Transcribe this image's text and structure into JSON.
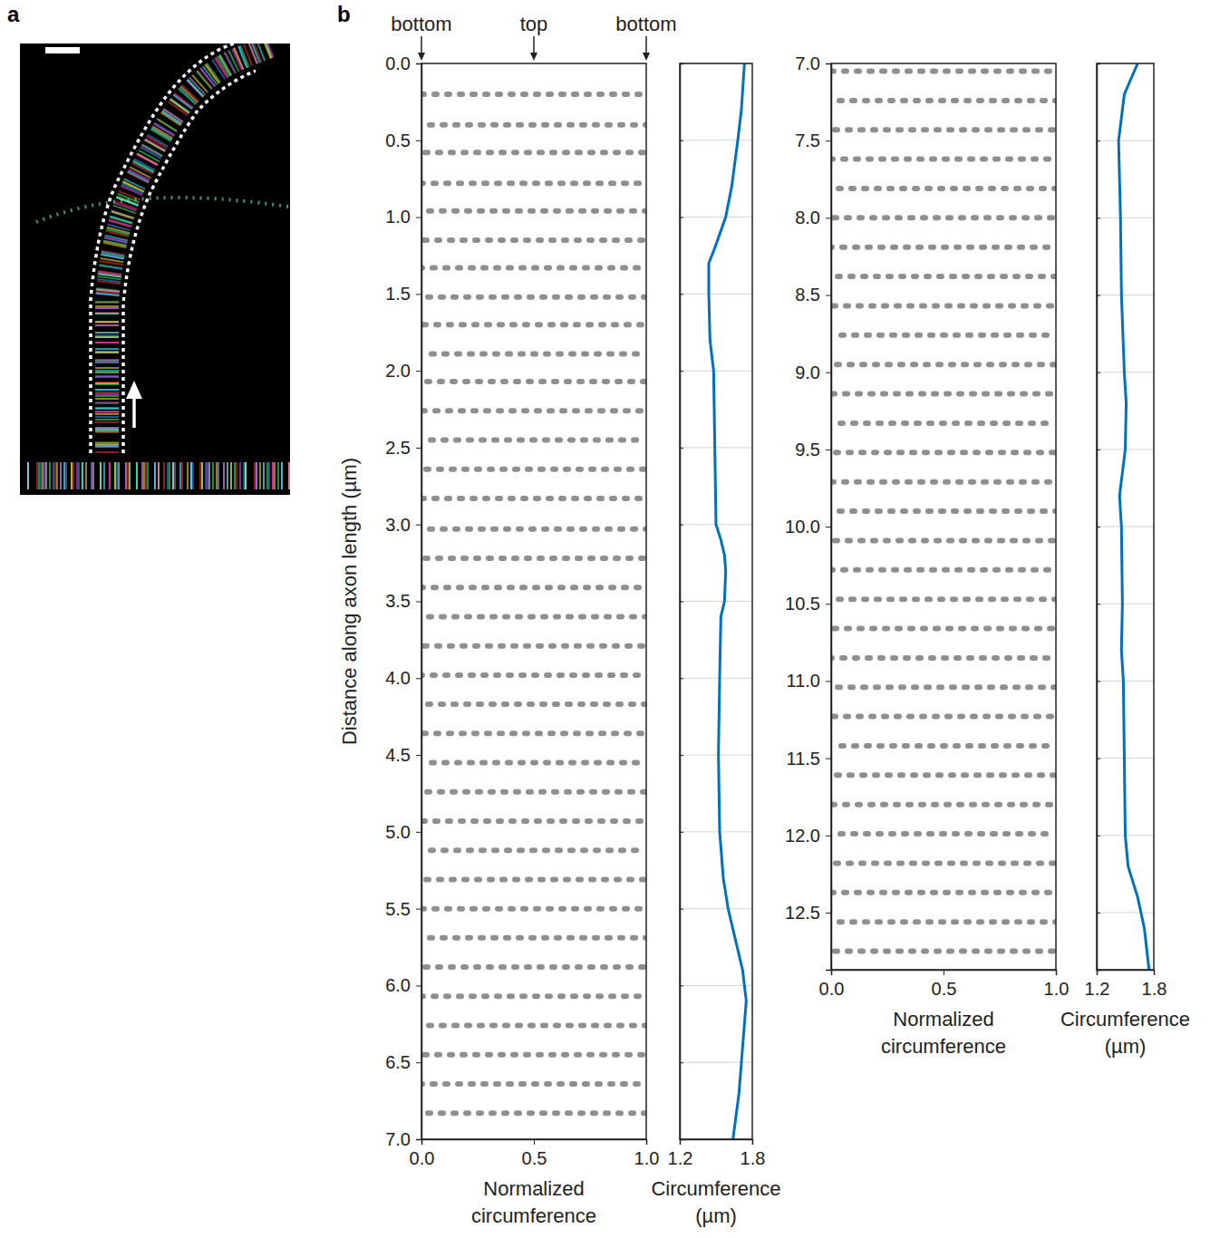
{
  "chart_data": [
    {
      "type": "image",
      "panel": "a"
    },
    {
      "type": "rings",
      "panel": "b",
      "y_label": "Distance along axon length (µm)",
      "x_label": "Normalized circumference",
      "annotations": [
        {
          "x": 0,
          "text": "bottom"
        },
        {
          "x": 0.5,
          "text": "top"
        },
        {
          "x": 1,
          "text": "bottom"
        }
      ],
      "xlim": [
        0,
        1
      ],
      "xticks": [
        {
          "value": 0,
          "label": "0.0"
        },
        0.5,
        {
          "value": 1,
          "label": "1.0"
        }
      ],
      "ylim": [
        0,
        7
      ],
      "yticks": [
        {
          "value": 0,
          "label": "0.0"
        },
        0.5,
        {
          "value": 1,
          "label": "1.0"
        },
        1.5,
        {
          "value": 2,
          "label": "2.0"
        },
        2.5,
        {
          "value": 3,
          "label": "3.0"
        },
        3.5,
        {
          "value": 4,
          "label": "4.0"
        },
        4.5,
        {
          "value": 5,
          "label": "5.0"
        },
        5.5,
        {
          "value": 6,
          "label": "6.0"
        },
        6.5,
        {
          "value": 7,
          "label": "7.0"
        }
      ],
      "values": [
        0.2,
        0.4,
        0.58,
        0.78,
        0.96,
        1.15,
        1.33,
        1.52,
        1.7,
        1.89,
        2.07,
        2.26,
        2.45,
        2.64,
        2.83,
        3.03,
        3.22,
        3.41,
        3.6,
        3.79,
        3.98,
        4.17,
        4.36,
        4.55,
        4.74,
        4.93,
        5.12,
        5.31,
        5.5,
        5.69,
        5.88,
        6.07,
        6.26,
        6.45,
        6.64,
        6.83
      ],
      "color": "#333333"
    },
    {
      "type": "line",
      "orientation": "horizontal",
      "x_label": "Circumference (µm)",
      "xlim": [
        1.2,
        1.8
      ],
      "xticks": [
        1.2,
        1.8
      ],
      "ylim": [
        0,
        7
      ],
      "yticks": [
        0,
        0.5,
        1,
        1.5,
        2,
        2.5,
        3,
        3.5,
        4,
        4.5,
        5,
        5.5,
        6,
        6.5,
        7
      ],
      "tick_labels": "x",
      "grid": true,
      "color": "#0072bd",
      "y": [
        0,
        0.3,
        0.5,
        0.8,
        1.0,
        1.2,
        1.3,
        1.5,
        1.8,
        2.0,
        2.5,
        3.0,
        3.1,
        3.2,
        3.3,
        3.5,
        3.6,
        4.0,
        4.5,
        5.0,
        5.3,
        5.5,
        5.7,
        5.9,
        6.1,
        6.4,
        6.7,
        7.0
      ],
      "values": [
        1.735,
        1.71,
        1.68,
        1.63,
        1.58,
        1.49,
        1.44,
        1.44,
        1.45,
        1.48,
        1.49,
        1.5,
        1.54,
        1.57,
        1.58,
        1.57,
        1.54,
        1.53,
        1.52,
        1.53,
        1.56,
        1.6,
        1.66,
        1.72,
        1.75,
        1.72,
        1.69,
        1.64
      ]
    },
    {
      "type": "rings",
      "x_label": "Normalized circumference",
      "xlim": [
        0,
        1
      ],
      "xticks": [
        {
          "value": 0,
          "label": "0.0"
        },
        0.5,
        {
          "value": 1,
          "label": "1.0"
        }
      ],
      "ylim": [
        7,
        12.87
      ],
      "yticks": [
        {
          "value": 7,
          "label": "7.0"
        },
        7.5,
        {
          "value": 8,
          "label": "8.0"
        },
        8.5,
        {
          "value": 9,
          "label": "9.0"
        },
        9.5,
        {
          "value": 10,
          "label": "10.0"
        },
        10.5,
        {
          "value": 11,
          "label": "11.0"
        },
        11.5,
        {
          "value": 12,
          "label": "12.0"
        },
        12.5
      ],
      "values": [
        7.05,
        7.24,
        7.43,
        7.62,
        7.81,
        8.0,
        8.19,
        8.38,
        8.57,
        8.76,
        8.95,
        9.14,
        9.33,
        9.52,
        9.71,
        9.9,
        10.09,
        10.28,
        10.47,
        10.66,
        10.85,
        11.04,
        11.23,
        11.42,
        11.61,
        11.8,
        11.99,
        12.18,
        12.37,
        12.56,
        12.75
      ],
      "color": "#333333"
    },
    {
      "type": "line",
      "orientation": "horizontal",
      "x_label": "Circumference (µm)",
      "xlim": [
        1.2,
        1.8
      ],
      "xticks": [
        1.2,
        1.8
      ],
      "ylim": [
        7,
        12.87
      ],
      "yticks": [
        7,
        7.5,
        8,
        8.5,
        9,
        9.5,
        10,
        10.5,
        11,
        11.5,
        12,
        12.5
      ],
      "tick_labels": "x",
      "grid": true,
      "color": "#0072bd",
      "y": [
        7.0,
        7.2,
        7.5,
        8.0,
        8.5,
        9.0,
        9.2,
        9.5,
        9.8,
        10.0,
        10.5,
        10.8,
        11.0,
        11.5,
        12.0,
        12.2,
        12.4,
        12.6,
        12.87
      ],
      "values": [
        1.63,
        1.49,
        1.43,
        1.45,
        1.46,
        1.49,
        1.51,
        1.5,
        1.44,
        1.46,
        1.47,
        1.46,
        1.48,
        1.49,
        1.5,
        1.53,
        1.63,
        1.7,
        1.75
      ]
    }
  ]
}
